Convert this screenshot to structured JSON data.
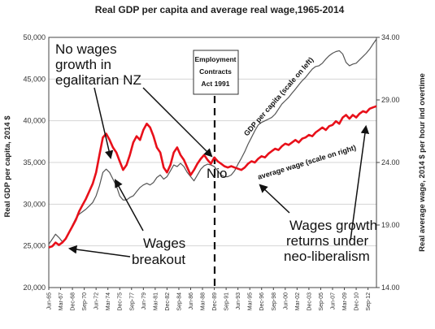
{
  "chart_data": {
    "type": "line",
    "title": "Real GDP per capita and average real wage,1965-2014",
    "ylabel": "Real GDP per capita, 2014 $",
    "y2label": "Real average wage, 2014 $ per hour ind overtime",
    "ylim": [
      20000,
      50000
    ],
    "y2lim": [
      14,
      34
    ],
    "yticks": [
      "20,000",
      "25,000",
      "30,000",
      "35,000",
      "40,000",
      "45,000",
      "50,000"
    ],
    "y2ticks": [
      "14.00",
      "19.00",
      "24.00",
      "29.00",
      "34.00"
    ],
    "xlim": [
      1965.5,
      2014.0
    ],
    "xticks": [
      "Jun-65",
      "Mar-67",
      "Dec-68",
      "Sep-70",
      "Jun-72",
      "Mar-74",
      "Dec-75",
      "Sep-77",
      "Jun-79",
      "Mar-81",
      "Dec-82",
      "Sep-84",
      "Jun-86",
      "Mar-88",
      "Dec-89",
      "Sep-91",
      "Jun-93",
      "Mar-95",
      "Dec-96",
      "Sep-98",
      "Jun-00",
      "Mar-02",
      "Dec-03",
      "Sep-05",
      "Jun-07",
      "Mar-09",
      "Dec-10",
      "Sep-12"
    ],
    "grid": true,
    "series": [
      {
        "name": "GDP per capita (scale on left)",
        "axis": "left",
        "color": "#555555",
        "x": [
          1965.5,
          1966.0,
          1966.5,
          1967.0,
          1967.5,
          1968.0,
          1968.5,
          1969.0,
          1969.5,
          1970.0,
          1970.5,
          1971.0,
          1971.5,
          1972.0,
          1972.5,
          1973.0,
          1973.5,
          1974.0,
          1974.5,
          1975.0,
          1975.5,
          1976.0,
          1976.5,
          1977.0,
          1977.5,
          1978.0,
          1978.5,
          1979.0,
          1979.5,
          1980.0,
          1980.5,
          1981.0,
          1981.5,
          1982.0,
          1982.5,
          1983.0,
          1983.5,
          1984.0,
          1984.5,
          1985.0,
          1985.5,
          1986.0,
          1986.5,
          1987.0,
          1987.5,
          1988.0,
          1988.5,
          1989.0,
          1989.5,
          1990.0,
          1990.5,
          1991.0,
          1991.5,
          1992.0,
          1992.5,
          1993.0,
          1993.5,
          1994.0,
          1994.5,
          1995.0,
          1995.5,
          1996.0,
          1996.5,
          1997.0,
          1997.5,
          1998.0,
          1998.5,
          1999.0,
          1999.5,
          2000.0,
          2000.5,
          2001.0,
          2001.5,
          2002.0,
          2002.5,
          2003.0,
          2003.5,
          2004.0,
          2004.5,
          2005.0,
          2005.5,
          2006.0,
          2006.5,
          2007.0,
          2007.5,
          2008.0,
          2008.5,
          2009.0,
          2009.5,
          2010.0,
          2010.5,
          2011.0,
          2011.5,
          2012.0,
          2012.5,
          2013.0,
          2013.5,
          2014.0
        ],
        "values": [
          25200,
          25800,
          26400,
          26000,
          25500,
          25800,
          26500,
          27500,
          28300,
          28800,
          29100,
          29400,
          29800,
          30200,
          31000,
          32200,
          33800,
          34200,
          33800,
          33000,
          32200,
          31000,
          30500,
          30500,
          30800,
          31000,
          31500,
          32000,
          32300,
          32500,
          32300,
          32600,
          33200,
          33500,
          33000,
          33300,
          34000,
          34700,
          34500,
          34900,
          34500,
          33800,
          33300,
          32800,
          33500,
          34200,
          34600,
          34800,
          34700,
          34500,
          34000,
          33500,
          33300,
          33300,
          33500,
          34000,
          34800,
          35500,
          36300,
          37200,
          38000,
          38800,
          39500,
          39800,
          40000,
          40200,
          40400,
          40800,
          41400,
          42000,
          42400,
          42800,
          43300,
          43800,
          44300,
          44800,
          45200,
          45700,
          46200,
          46500,
          46600,
          46900,
          47400,
          47800,
          48100,
          48300,
          48400,
          48000,
          47000,
          46600,
          46800,
          46900,
          47300,
          47700,
          48100,
          48600,
          49200,
          49800
        ]
      },
      {
        "name": "average wage (scale on right)",
        "axis": "right",
        "color": "#e8101a",
        "x": [
          1965.5,
          1966.0,
          1966.5,
          1967.0,
          1967.5,
          1968.0,
          1968.5,
          1969.0,
          1969.5,
          1970.0,
          1970.5,
          1971.0,
          1971.5,
          1972.0,
          1972.5,
          1973.0,
          1973.5,
          1974.0,
          1974.5,
          1975.0,
          1975.5,
          1976.0,
          1976.5,
          1977.0,
          1977.5,
          1978.0,
          1978.5,
          1979.0,
          1979.5,
          1980.0,
          1980.5,
          1981.0,
          1981.5,
          1982.0,
          1982.5,
          1983.0,
          1983.5,
          1984.0,
          1984.5,
          1985.0,
          1985.5,
          1986.0,
          1986.5,
          1987.0,
          1987.5,
          1988.0,
          1988.5,
          1989.0,
          1989.5,
          1990.0,
          1990.5,
          1991.0,
          1991.5,
          1992.0,
          1992.5,
          1993.0,
          1993.5,
          1994.0,
          1994.5,
          1995.0,
          1995.5,
          1996.0,
          1996.5,
          1997.0,
          1997.5,
          1998.0,
          1998.5,
          1999.0,
          1999.5,
          2000.0,
          2000.5,
          2001.0,
          2001.5,
          2002.0,
          2002.5,
          2003.0,
          2003.5,
          2004.0,
          2004.5,
          2005.0,
          2005.5,
          2006.0,
          2006.5,
          2007.0,
          2007.5,
          2008.0,
          2008.5,
          2009.0,
          2009.5,
          2010.0,
          2010.5,
          2011.0,
          2011.5,
          2012.0,
          2012.5,
          2013.0,
          2013.5,
          2014.0
        ],
        "values": [
          17.2,
          17.3,
          17.6,
          17.4,
          17.6,
          17.9,
          18.4,
          18.9,
          19.4,
          20.1,
          20.6,
          21.1,
          21.7,
          22.3,
          23.2,
          24.6,
          26.0,
          26.3,
          25.8,
          25.2,
          24.8,
          24.1,
          23.4,
          23.8,
          24.6,
          25.6,
          26.1,
          25.8,
          26.6,
          27.1,
          26.8,
          26.1,
          25.2,
          24.8,
          23.6,
          23.2,
          23.8,
          24.8,
          25.2,
          24.6,
          24.2,
          23.6,
          23.0,
          23.4,
          23.9,
          24.3,
          24.6,
          24.2,
          23.9,
          24.4,
          24.1,
          23.9,
          23.7,
          23.6,
          23.7,
          23.6,
          23.5,
          23.4,
          23.6,
          23.9,
          24.1,
          24.0,
          24.3,
          24.5,
          24.4,
          24.7,
          24.9,
          25.1,
          25.0,
          25.3,
          25.5,
          25.4,
          25.6,
          25.8,
          25.6,
          25.9,
          26.0,
          26.2,
          26.1,
          26.4,
          26.6,
          26.8,
          26.6,
          26.9,
          27.0,
          27.3,
          27.1,
          27.6,
          27.8,
          27.5,
          27.8,
          27.6,
          27.9,
          28.1,
          28.0,
          28.3,
          28.4,
          28.5
        ]
      }
    ],
    "annotations": {
      "nz_text": [
        "No wages",
        "growth in",
        "egalitarian NZ"
      ],
      "nio_text": "Nio",
      "breakout_text": [
        "Wages",
        "breakout"
      ],
      "returns_text": [
        "Wages growth",
        "returns under",
        "neo-liberalism"
      ],
      "box_text": [
        "Employment",
        "Contracts",
        "Act 1991"
      ]
    }
  }
}
